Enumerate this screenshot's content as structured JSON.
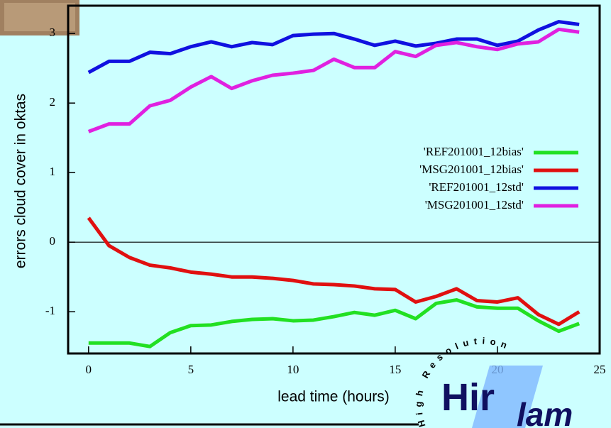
{
  "chart_data": {
    "type": "line",
    "xlabel": "lead time (hours)",
    "ylabel": "errors cloud cover in oktas",
    "x": [
      0,
      1,
      2,
      3,
      4,
      5,
      6,
      7,
      8,
      9,
      10,
      11,
      12,
      13,
      14,
      15,
      16,
      17,
      18,
      19,
      20,
      21,
      22,
      23,
      24
    ],
    "series": [
      {
        "name": "'REF201001_12bias'",
        "color": "#22e022",
        "values": [
          -1.45,
          -1.45,
          -1.45,
          -1.5,
          -1.3,
          -1.2,
          -1.19,
          -1.14,
          -1.11,
          -1.1,
          -1.13,
          -1.12,
          -1.07,
          -1.01,
          -1.05,
          -0.98,
          -1.1,
          -0.88,
          -0.83,
          -0.93,
          -0.95,
          -0.95,
          -1.13,
          -1.28,
          -1.17
        ]
      },
      {
        "name": "'MSG201001_12bias'",
        "color": "#e01010",
        "values": [
          0.35,
          -0.05,
          -0.22,
          -0.33,
          -0.37,
          -0.43,
          -0.46,
          -0.5,
          -0.5,
          -0.52,
          -0.55,
          -0.6,
          -0.61,
          -0.63,
          -0.67,
          -0.68,
          -0.86,
          -0.78,
          -0.67,
          -0.84,
          -0.86,
          -0.8,
          -1.04,
          -1.18,
          -1.0
        ]
      },
      {
        "name": "'REF201001_12std'",
        "color": "#1010e0",
        "values": [
          2.44,
          2.6,
          2.6,
          2.73,
          2.71,
          2.81,
          2.88,
          2.81,
          2.87,
          2.84,
          2.97,
          2.99,
          3.0,
          2.92,
          2.83,
          2.89,
          2.82,
          2.86,
          2.92,
          2.92,
          2.83,
          2.89,
          3.05,
          3.17,
          3.13
        ]
      },
      {
        "name": "'MSG201001_12std'",
        "color": "#e020e0",
        "values": [
          1.59,
          1.7,
          1.7,
          1.96,
          2.04,
          2.23,
          2.38,
          2.21,
          2.32,
          2.4,
          2.43,
          2.47,
          2.63,
          2.51,
          2.51,
          2.74,
          2.67,
          2.83,
          2.87,
          2.81,
          2.77,
          2.85,
          2.88,
          3.06,
          3.02
        ]
      }
    ],
    "xlim": [
      -1,
      25
    ],
    "xticks": [
      0,
      5,
      10,
      15,
      20,
      25
    ],
    "ylim": [
      -1.6,
      3.4
    ],
    "yticks": [
      -1,
      0,
      1,
      2,
      3
    ],
    "zeroline": true,
    "legend": "upper-right"
  },
  "logo": {
    "main": "Hir",
    "sub": "lam",
    "arc": "High Resolution"
  }
}
